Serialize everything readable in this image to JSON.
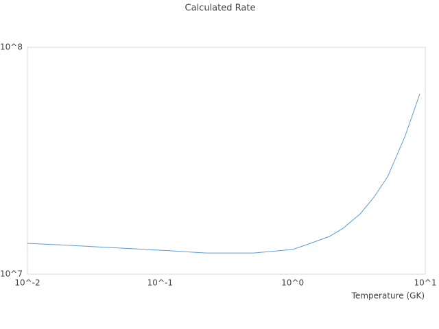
{
  "chart_data": {
    "type": "line",
    "title": "Calculated Rate",
    "x_label": "Temperature (GK)",
    "x": [
      0.01,
      0.0204,
      0.1,
      0.221,
      0.509,
      1.0,
      1.32,
      1.89,
      2.39,
      3.23,
      4.09,
      5.2,
      7.0,
      9.1
    ],
    "values": [
      13670000,
      13400000,
      12760000,
      12400000,
      12400000,
      12850000,
      13580000,
      14660000,
      15900000,
      18450000,
      21800000,
      26900000,
      40200000,
      62400000
    ],
    "color": "#5b9bd5",
    "xscale": "log",
    "yscale": "log",
    "xlim": [
      0.01,
      10
    ],
    "ylim": [
      10000000,
      100000000
    ],
    "xticks": [
      {
        "value": 0.01,
        "label": "10^-2"
      },
      {
        "value": 0.1,
        "label": "10^-1"
      },
      {
        "value": 1,
        "label": "10^0"
      },
      {
        "value": 10,
        "label": "10^1"
      }
    ],
    "yticks": [
      {
        "value": 10000000,
        "label": "10^7"
      },
      {
        "value": 100000000,
        "label": "10^8"
      }
    ],
    "grid": false
  }
}
